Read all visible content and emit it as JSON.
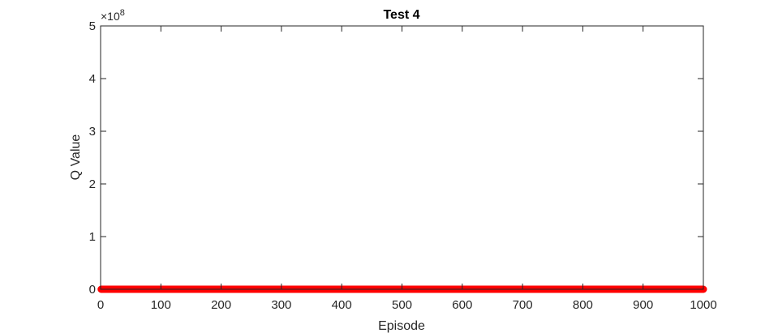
{
  "chart_data": {
    "type": "scatter",
    "title": "Test 4",
    "xlabel": "Episode",
    "ylabel": "Q Value",
    "xlim": [
      0,
      1000
    ],
    "ylim": [
      0,
      500000000
    ],
    "y_exponent_label": "×10",
    "y_exponent_power": "8",
    "x_ticks": [
      "0",
      "100",
      "200",
      "300",
      "400",
      "500",
      "600",
      "700",
      "800",
      "900",
      "1000"
    ],
    "x_tick_values": [
      0,
      100,
      200,
      300,
      400,
      500,
      600,
      700,
      800,
      900,
      1000
    ],
    "y_ticks": [
      "0",
      "1",
      "2",
      "3",
      "4",
      "5"
    ],
    "y_tick_values": [
      0,
      100000000,
      200000000,
      300000000,
      400000000,
      500000000
    ],
    "grid": false,
    "series": [
      {
        "marker_color": "#ff0000",
        "x_start": 1,
        "x_end": 1000,
        "x_step": 1,
        "y_value": 0
      }
    ]
  }
}
